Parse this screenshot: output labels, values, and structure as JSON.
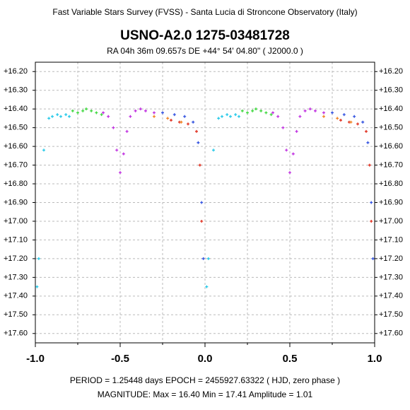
{
  "header": "Fast Variable Stars Survey (FVSS) - Santa Lucia di Stroncone Observatory (Italy)",
  "chart_data": {
    "type": "scatter",
    "title": "USNO-A2.0  1275-03481728",
    "subtitle": "RA  04h 36m 09.657s    DE   +44° 54' 04.80\"     ( J2000.0 )",
    "xlim": [
      -1,
      1
    ],
    "ylim": [
      16.15,
      17.65
    ],
    "y_inverted": true,
    "grid": true,
    "xticks": [
      {
        "value": -1,
        "label": "-1.0"
      },
      {
        "value": -0.5,
        "label": "-0.5"
      },
      {
        "value": 0,
        "label": "0.0"
      },
      {
        "value": 0.5,
        "label": "0.5"
      },
      {
        "value": 1,
        "label": "1.0"
      }
    ],
    "xminor": [
      -0.75,
      -0.25,
      0.25,
      0.75
    ],
    "yticks": [
      {
        "value": 16.2,
        "label": "+16.20"
      },
      {
        "value": 16.3,
        "label": "+16.30"
      },
      {
        "value": 16.4,
        "label": "+16.40"
      },
      {
        "value": 16.5,
        "label": "+16.50"
      },
      {
        "value": 16.6,
        "label": "+16.60"
      },
      {
        "value": 16.7,
        "label": "+16.70"
      },
      {
        "value": 16.8,
        "label": "+16.80"
      },
      {
        "value": 16.9,
        "label": "+16.90"
      },
      {
        "value": 17.0,
        "label": "+17.00"
      },
      {
        "value": 17.1,
        "label": "+17.10"
      },
      {
        "value": 17.2,
        "label": "+17.20"
      },
      {
        "value": 17.3,
        "label": "+17.30"
      },
      {
        "value": 17.4,
        "label": "+17.40"
      },
      {
        "value": 17.5,
        "label": "+17.50"
      },
      {
        "value": 17.6,
        "label": "+17.60"
      }
    ],
    "series": [
      {
        "color": "#22c8e8",
        "x": [
          -0.99,
          -0.98,
          -0.95,
          -0.92,
          -0.9,
          -0.87,
          -0.85,
          -0.82,
          -0.8,
          0.01,
          0.02,
          0.05,
          0.08,
          0.1,
          0.13,
          0.15,
          0.18,
          0.2
        ],
        "values": [
          17.35,
          17.2,
          16.62,
          16.45,
          16.44,
          16.43,
          16.44,
          16.43,
          16.44,
          17.35,
          17.2,
          16.62,
          16.45,
          16.44,
          16.43,
          16.44,
          16.43,
          16.44
        ]
      },
      {
        "color": "#40d840",
        "x": [
          -0.78,
          -0.75,
          -0.72,
          -0.7,
          -0.67,
          -0.64,
          -0.61,
          0.22,
          0.25,
          0.28,
          0.3,
          0.33,
          0.36,
          0.39
        ],
        "values": [
          16.41,
          16.42,
          16.41,
          16.4,
          16.41,
          16.42,
          16.43,
          16.41,
          16.42,
          16.41,
          16.4,
          16.41,
          16.42,
          16.43
        ]
      },
      {
        "color": "#c030e0",
        "x": [
          -0.6,
          -0.57,
          -0.54,
          -0.52,
          -0.5,
          -0.48,
          -0.46,
          -0.44,
          -0.41,
          -0.38,
          -0.35,
          -0.3,
          0.4,
          0.43,
          0.46,
          0.48,
          0.5,
          0.52,
          0.54,
          0.56,
          0.59,
          0.62,
          0.65,
          0.7
        ],
        "values": [
          16.42,
          16.44,
          16.5,
          16.62,
          16.74,
          16.64,
          16.52,
          16.44,
          16.41,
          16.4,
          16.41,
          16.42,
          16.42,
          16.44,
          16.5,
          16.62,
          16.74,
          16.64,
          16.52,
          16.44,
          16.41,
          16.4,
          16.41,
          16.42
        ]
      },
      {
        "color": "#3050e0",
        "x": [
          -0.25,
          -0.18,
          -0.12,
          -0.07,
          -0.04,
          -0.02,
          -0.01,
          0.75,
          0.82,
          0.88,
          0.93,
          0.96,
          0.98,
          0.99
        ],
        "values": [
          16.42,
          16.43,
          16.44,
          16.47,
          16.58,
          16.9,
          17.2,
          16.42,
          16.43,
          16.44,
          16.47,
          16.58,
          16.9,
          17.2
        ]
      },
      {
        "color": "#e03020",
        "x": [
          -0.2,
          -0.15,
          -0.1,
          -0.05,
          -0.03,
          -0.02,
          0.8,
          0.85,
          0.9,
          0.95,
          0.97,
          0.98
        ],
        "values": [
          16.46,
          16.47,
          16.48,
          16.52,
          16.7,
          17.0,
          16.46,
          16.47,
          16.48,
          16.52,
          16.7,
          17.0
        ]
      },
      {
        "color": "#f08020",
        "x": [
          -0.3,
          -0.22,
          -0.14,
          0.7,
          0.78,
          0.86
        ],
        "values": [
          16.44,
          16.45,
          16.47,
          16.44,
          16.45,
          16.47
        ]
      }
    ]
  },
  "footer": [
    "PERIOD = 1.25448 days     EPOCH = 2455927.63322  ( HJD, zero phase )",
    "MAGNITUDE:  Max = 16.40    Min = 17.41    Amplitude = 1.01"
  ]
}
